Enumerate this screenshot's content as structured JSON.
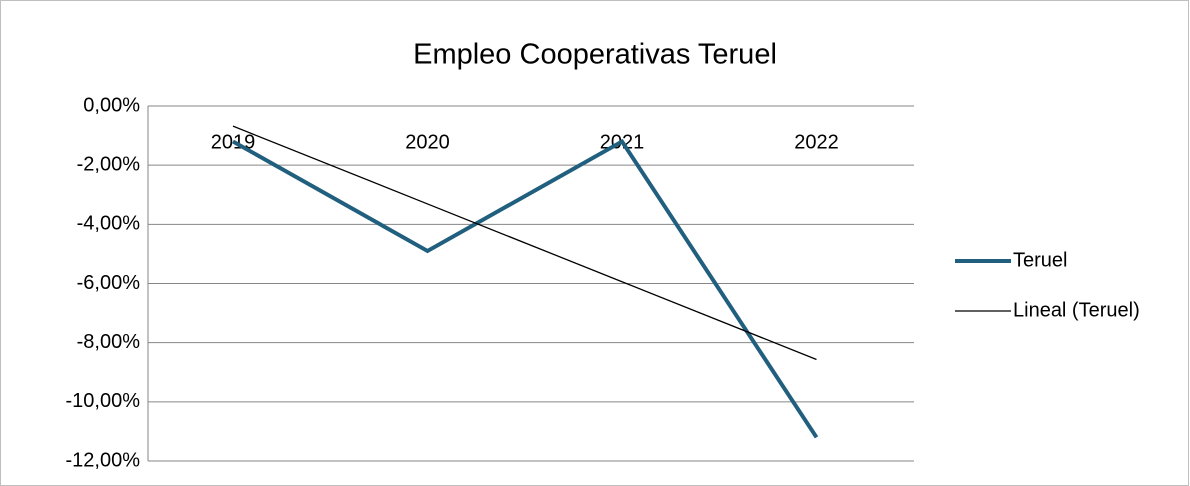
{
  "chart_data": {
    "type": "line",
    "title": "Empleo Cooperativas Teruel",
    "categories": [
      "2019",
      "2020",
      "2021",
      "2022"
    ],
    "series": [
      {
        "name": "Teruel",
        "color": "#215f7e",
        "values": [
          -1.2,
          -4.9,
          -1.2,
          -11.2
        ]
      },
      {
        "name": "Lineal (Teruel)",
        "color": "#000000",
        "values": [
          -0.68,
          -3.31,
          -5.94,
          -8.57
        ]
      }
    ],
    "ylim": [
      -12,
      0
    ],
    "yticks": [
      {
        "value": 0,
        "label": "0,00%"
      },
      {
        "value": -2,
        "label": "-2,00%"
      },
      {
        "value": -4,
        "label": "-4,00%"
      },
      {
        "value": -6,
        "label": "-6,00%"
      },
      {
        "value": -8,
        "label": "-8,00%"
      },
      {
        "value": -10,
        "label": "-10,00%"
      },
      {
        "value": -12,
        "label": "-12,00%"
      }
    ],
    "grid": true,
    "legend": "right"
  }
}
